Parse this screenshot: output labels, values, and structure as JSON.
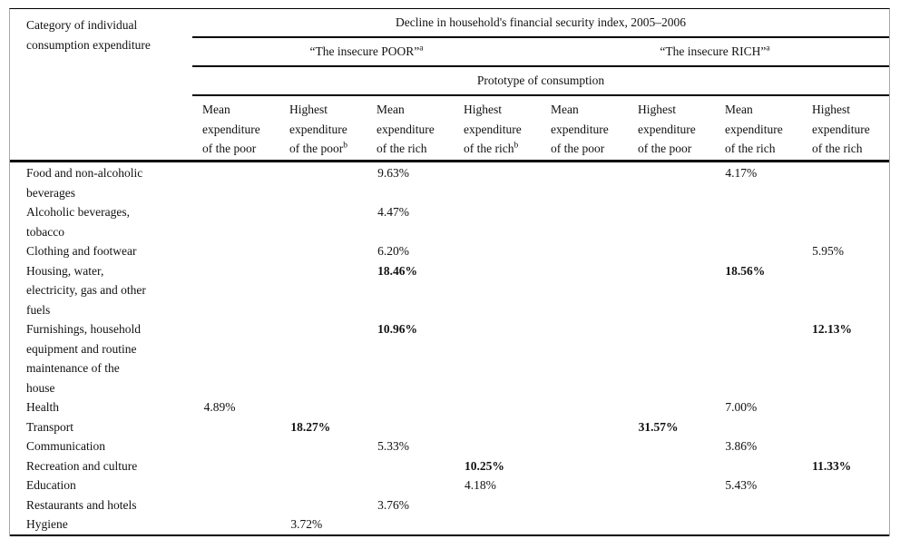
{
  "page": {
    "background": "#ffffff",
    "text_color": "#111111",
    "rule_color": "#000000",
    "side_border_color": "#a8a8a8"
  },
  "table": {
    "category_header": "Category of individual\nconsumption expenditure",
    "top_header": "Decline in household's financial security index, 2005–2006",
    "group_headers": [
      {
        "text": "“The insecure POOR”",
        "sup": "a"
      },
      {
        "text": "“The insecure RICH”",
        "sup": "a"
      }
    ],
    "sub_header": "Prototype of consumption",
    "column_headers": [
      {
        "text": "Mean\nexpenditure\nof the poor"
      },
      {
        "text": "Highest\nexpenditure\nof the poor",
        "sup": "b"
      },
      {
        "text": "Mean\nexpenditure\nof the rich"
      },
      {
        "text": "Highest\nexpenditure\nof the rich",
        "sup": "b"
      },
      {
        "text": "Mean\nexpenditure\nof the poor"
      },
      {
        "text": "Highest\nexpenditure\nof the poor"
      },
      {
        "text": "Mean\nexpenditure\nof the rich"
      },
      {
        "text": "Highest\nexpenditure\nof the rich"
      }
    ],
    "rows": [
      {
        "category": "Food and non-alcoholic\nbeverages",
        "values": [
          null,
          null,
          {
            "v": "9.63%"
          },
          null,
          null,
          null,
          {
            "v": "4.17%"
          },
          null
        ]
      },
      {
        "category": "Alcoholic beverages,\ntobacco",
        "values": [
          null,
          null,
          {
            "v": "4.47%"
          },
          null,
          null,
          null,
          null,
          null
        ]
      },
      {
        "category": "Clothing and footwear",
        "values": [
          null,
          null,
          {
            "v": "6.20%"
          },
          null,
          null,
          null,
          null,
          {
            "v": "5.95%"
          }
        ]
      },
      {
        "category": "Housing, water,\nelectricity, gas and other\nfuels",
        "values": [
          null,
          null,
          {
            "v": "18.46%",
            "b": true
          },
          null,
          null,
          null,
          {
            "v": "18.56%",
            "b": true
          },
          null
        ]
      },
      {
        "category": "Furnishings, household\nequipment and routine\nmaintenance of the\nhouse",
        "values": [
          null,
          null,
          {
            "v": "10.96%",
            "b": true
          },
          null,
          null,
          null,
          null,
          {
            "v": "12.13%",
            "b": true
          }
        ]
      },
      {
        "category": "Health",
        "values": [
          {
            "v": "4.89%"
          },
          null,
          null,
          null,
          null,
          null,
          {
            "v": "7.00%"
          },
          null
        ]
      },
      {
        "category": "Transport",
        "values": [
          null,
          {
            "v": "18.27%",
            "b": true
          },
          null,
          null,
          null,
          {
            "v": "31.57%",
            "b": true
          },
          null,
          null
        ]
      },
      {
        "category": "Communication",
        "values": [
          null,
          null,
          {
            "v": "5.33%"
          },
          null,
          null,
          null,
          {
            "v": "3.86%"
          },
          null
        ]
      },
      {
        "category": "Recreation and culture",
        "values": [
          null,
          null,
          null,
          {
            "v": "10.25%",
            "b": true
          },
          null,
          null,
          null,
          {
            "v": "11.33%",
            "b": true
          }
        ]
      },
      {
        "category": "Education",
        "values": [
          null,
          null,
          null,
          {
            "v": "4.18%"
          },
          null,
          null,
          {
            "v": "5.43%"
          },
          null
        ]
      },
      {
        "category": "Restaurants and hotels",
        "values": [
          null,
          null,
          {
            "v": "3.76%"
          },
          null,
          null,
          null,
          null,
          null
        ]
      },
      {
        "category": "Hygiene",
        "values": [
          null,
          {
            "v": "3.72%"
          },
          null,
          null,
          null,
          null,
          null,
          null
        ]
      }
    ]
  }
}
